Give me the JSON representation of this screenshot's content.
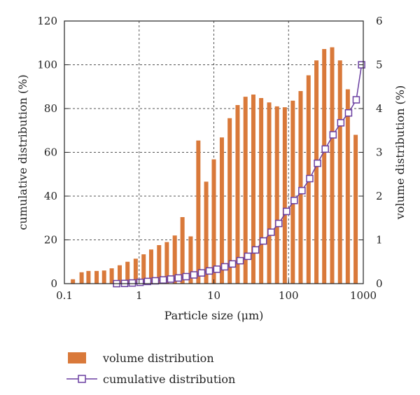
{
  "chart_data": {
    "type": "bar",
    "xlabel": "Particle size (μm)",
    "ylabel_left": "cumulative distribution (%)",
    "ylabel_right": "volume distribution (%)",
    "x_scale": "log",
    "xlim": [
      0.1,
      1000
    ],
    "x_ticks": [
      "0.1",
      "1",
      "10",
      "100",
      "1000"
    ],
    "ylim_left": [
      0,
      120
    ],
    "y_ticks_left": [
      "0",
      "20",
      "40",
      "60",
      "80",
      "100",
      "120"
    ],
    "ylim_right": [
      0,
      6
    ],
    "y_ticks_right": [
      "0",
      "1",
      "2",
      "3",
      "4",
      "5",
      "6"
    ],
    "grid": true,
    "colors": {
      "bars": "#d9793a",
      "line": "#6a3fa0"
    },
    "series": [
      {
        "name": "volume distribution",
        "axis": "right",
        "type": "bar",
        "x": [
          0.13,
          0.17,
          0.21,
          0.27,
          0.34,
          0.43,
          0.55,
          0.7,
          0.9,
          1.15,
          1.45,
          1.85,
          2.35,
          3.0,
          3.8,
          4.9,
          6.2,
          7.9,
          10.0,
          12.8,
          16.3,
          20.8,
          26.5,
          33.8,
          43.0,
          55.0,
          70.0,
          89.0,
          114,
          145,
          185,
          236,
          300,
          383,
          488,
          620,
          790
        ],
        "values": [
          0.1,
          0.26,
          0.29,
          0.29,
          0.3,
          0.35,
          0.42,
          0.5,
          0.57,
          0.67,
          0.78,
          0.88,
          0.95,
          1.1,
          1.52,
          1.08,
          3.27,
          2.33,
          2.84,
          3.34,
          3.78,
          4.08,
          4.27,
          4.32,
          4.24,
          4.14,
          4.05,
          4.03,
          4.18,
          4.4,
          4.76,
          5.1,
          5.36,
          5.4,
          5.1,
          4.44,
          3.4
        ]
      },
      {
        "name": "cumulative distribution",
        "axis": "left",
        "type": "line",
        "marker": "open-square",
        "x": [
          0.5,
          0.64,
          0.81,
          1.03,
          1.3,
          1.65,
          2.1,
          2.65,
          3.35,
          4.25,
          5.4,
          6.85,
          8.7,
          11.0,
          14.0,
          17.7,
          22.5,
          28.5,
          36.2,
          46.0,
          58.5,
          74.0,
          94.0,
          119,
          151,
          192,
          244,
          310,
          394,
          500,
          635,
          805,
          950
        ],
        "values": [
          0,
          0.1,
          0.3,
          0.6,
          1.0,
          1.3,
          1.7,
          2.1,
          2.6,
          3.2,
          4.0,
          4.9,
          5.8,
          6.6,
          7.7,
          9.0,
          10.5,
          12.5,
          15.4,
          19.5,
          23.5,
          27.5,
          33.0,
          38.0,
          42.5,
          48.0,
          55.0,
          61.5,
          68.0,
          73.5,
          78.0,
          84.0,
          100
        ]
      }
    ]
  }
}
